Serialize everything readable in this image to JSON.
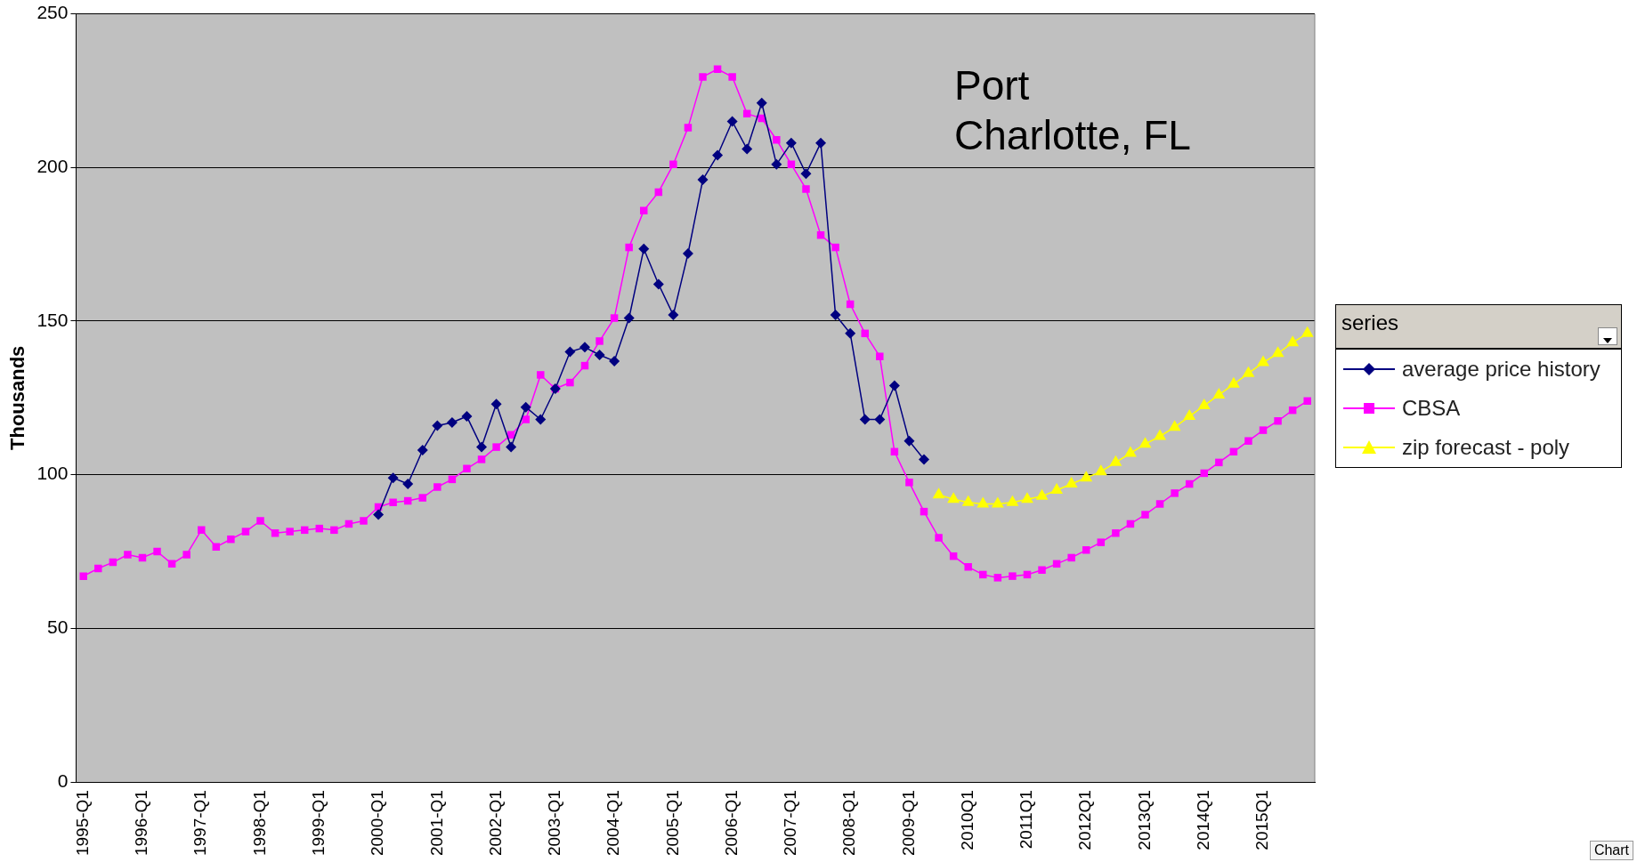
{
  "chart_data": {
    "type": "line",
    "ylabel": "Thousands",
    "legend_title": "series",
    "legend": "right",
    "grid": "y",
    "line_style": "solid",
    "annotations": [
      "Port\nCharlotte, FL",
      "Chart"
    ],
    "categories": [
      "1995-Q1",
      null,
      null,
      null,
      "1996-Q1",
      null,
      null,
      null,
      "1997-Q1",
      null,
      null,
      null,
      "1998-Q1",
      null,
      null,
      null,
      "1999-Q1",
      null,
      null,
      null,
      "2000-Q1",
      null,
      null,
      null,
      "2001-Q1",
      null,
      null,
      null,
      "2002-Q1",
      null,
      null,
      null,
      "2003-Q1",
      null,
      null,
      null,
      "2004-Q1",
      null,
      null,
      null,
      "2005-Q1",
      null,
      null,
      null,
      "2006-Q1",
      null,
      null,
      null,
      "2007-Q1",
      null,
      null,
      null,
      "2008-Q1",
      null,
      null,
      null,
      "2009-Q1",
      null,
      null,
      null,
      "2010Q1",
      null,
      null,
      null,
      "2011Q1",
      null,
      null,
      null,
      "2012Q1",
      null,
      null,
      null,
      "2013Q1",
      null,
      null,
      null,
      "2014Q1",
      null,
      null,
      null,
      "2015Q1",
      null,
      null,
      null
    ],
    "ylim": [
      0,
      250
    ],
    "yticks": [
      0,
      50,
      100,
      150,
      200,
      250
    ],
    "series": [
      {
        "name": "average price history",
        "color": "#000080",
        "marker": "diamond",
        "values": [
          null,
          null,
          null,
          null,
          null,
          null,
          null,
          null,
          null,
          null,
          null,
          null,
          null,
          null,
          null,
          null,
          null,
          null,
          null,
          null,
          87,
          99,
          97,
          108,
          116,
          117,
          119,
          109,
          123,
          109,
          122,
          118,
          128,
          140,
          141.5,
          139,
          137,
          151,
          173.5,
          162,
          152,
          172,
          196,
          204,
          215,
          206,
          221,
          201,
          208,
          198,
          208,
          152,
          146,
          118,
          118,
          129,
          111,
          105,
          null,
          null,
          null,
          null,
          null,
          null,
          null,
          null,
          null,
          null,
          null,
          null,
          null,
          null,
          null,
          null,
          null,
          null,
          null,
          null,
          null,
          null,
          null,
          null,
          null,
          null
        ]
      },
      {
        "name": "CBSA",
        "color": "#ff00ff",
        "marker": "square",
        "values": [
          67,
          69.5,
          71.5,
          74,
          73,
          75,
          71,
          74,
          82,
          76.5,
          79,
          81.5,
          85,
          81,
          81.5,
          82,
          82.5,
          82,
          84,
          85,
          89.5,
          91,
          91.5,
          92.5,
          96,
          98.5,
          102,
          105,
          109,
          113,
          118,
          132.5,
          128,
          130,
          135.5,
          143.5,
          151,
          174,
          186,
          192,
          201,
          213,
          229.5,
          232,
          229.5,
          217.5,
          216,
          209,
          201,
          193,
          178,
          174,
          155.5,
          146,
          138.5,
          107.5,
          97.5,
          88,
          79.5,
          73.5,
          70,
          67.5,
          66.5,
          67,
          67.5,
          69,
          71,
          73,
          75.5,
          78,
          81,
          84,
          87,
          90.5,
          94,
          97,
          100.5,
          104,
          107.5,
          111,
          114.5,
          117.5,
          121,
          124
        ]
      },
      {
        "name": "zip forecast - poly",
        "color": "#ffff00",
        "marker": "triangle",
        "values": [
          null,
          null,
          null,
          null,
          null,
          null,
          null,
          null,
          null,
          null,
          null,
          null,
          null,
          null,
          null,
          null,
          null,
          null,
          null,
          null,
          null,
          null,
          null,
          null,
          null,
          null,
          null,
          null,
          null,
          null,
          null,
          null,
          null,
          null,
          null,
          null,
          null,
          null,
          null,
          null,
          null,
          null,
          null,
          null,
          null,
          null,
          null,
          null,
          null,
          null,
          null,
          null,
          null,
          null,
          null,
          null,
          null,
          null,
          93.5,
          92,
          91,
          90.5,
          90.5,
          91,
          92,
          93,
          95,
          97,
          99,
          101,
          104,
          107,
          110,
          112.5,
          115.5,
          119,
          122.5,
          126,
          129.5,
          133,
          136.5,
          139.5,
          143,
          146
        ]
      }
    ]
  }
}
